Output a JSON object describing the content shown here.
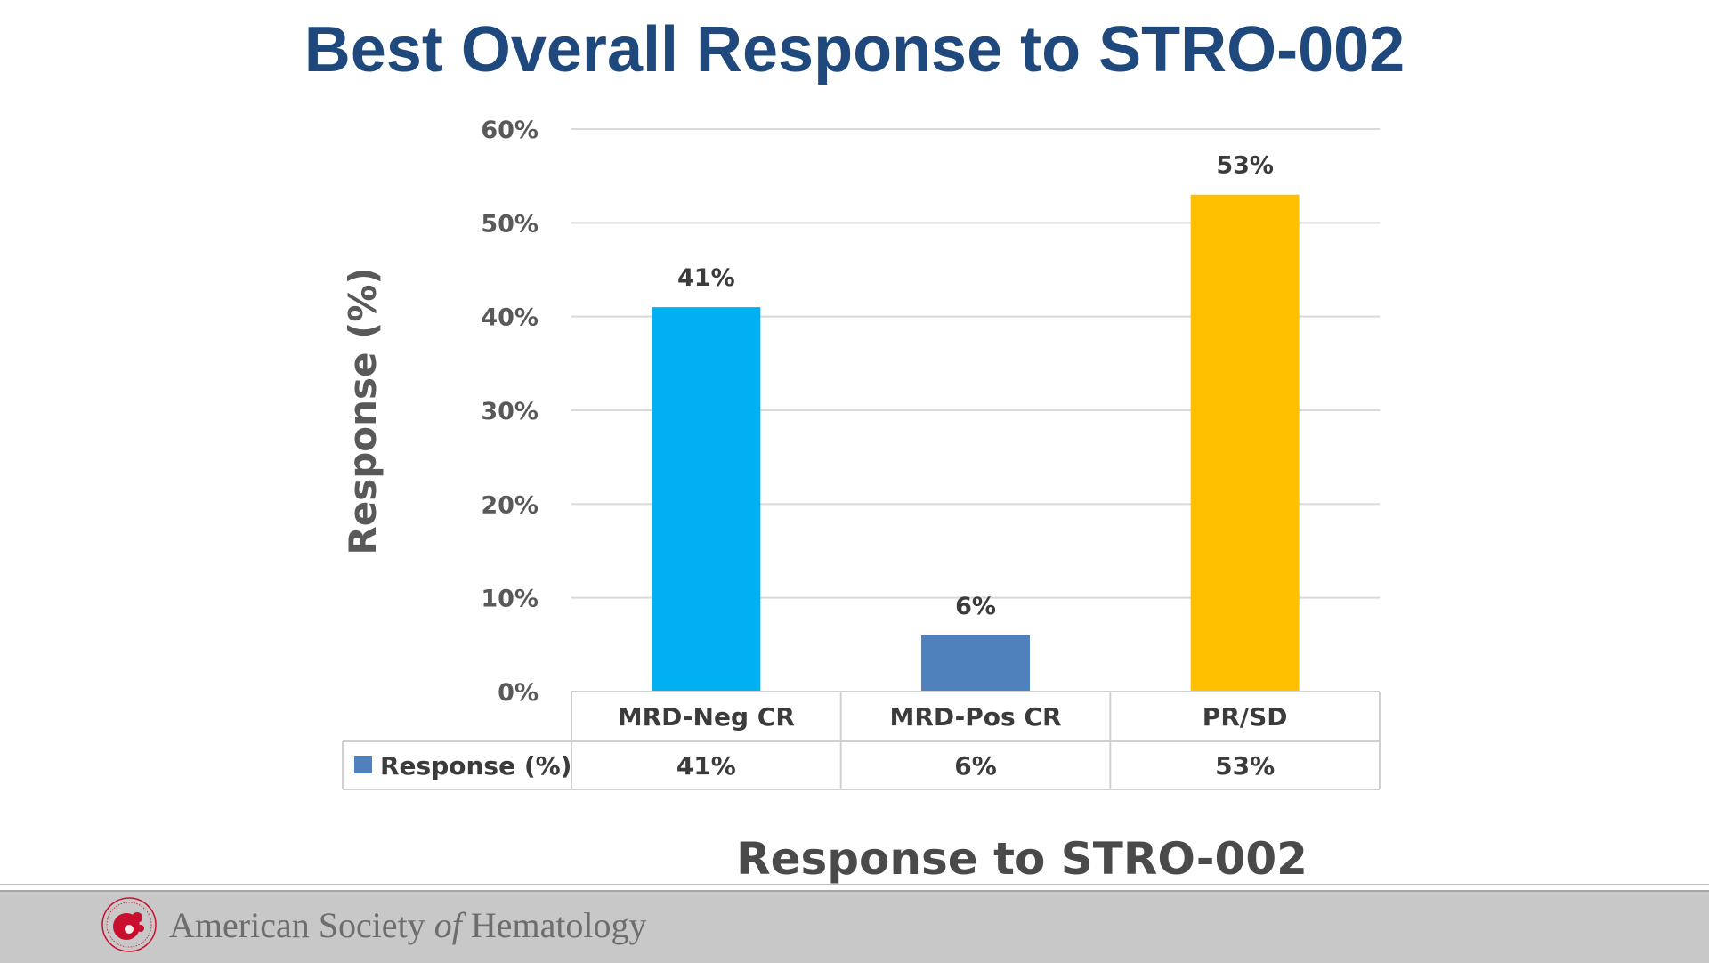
{
  "slide": {
    "title": "Best Overall Response to STRO-002"
  },
  "chart_data": {
    "type": "bar",
    "categories": [
      "MRD-Neg CR",
      "MRD-Pos CR",
      "PR/SD"
    ],
    "series": [
      {
        "name": "Response (%)",
        "values": [
          41,
          6,
          53
        ],
        "data_labels": [
          "41%",
          "6%",
          "53%"
        ],
        "bar_colors": [
          "#00b0f0",
          "#4f81bd",
          "#ffc000"
        ],
        "legend_color": "#4f81bd"
      }
    ],
    "ylim": [
      0,
      60
    ],
    "yticks": [
      0,
      10,
      20,
      30,
      40,
      50,
      60
    ],
    "ytick_labels": [
      "0%",
      "10%",
      "20%",
      "30%",
      "40%",
      "50%",
      "60%"
    ],
    "ylabel": "Response  (%)",
    "xlabel": "Response to STRO-002",
    "grid": true,
    "data_table": true
  },
  "footer": {
    "org_name_pre": "American Society ",
    "org_name_of": "of",
    "org_name_post": " Hematology",
    "logo_icon": "ash-logo-icon",
    "logo_color": "#c8102e"
  }
}
